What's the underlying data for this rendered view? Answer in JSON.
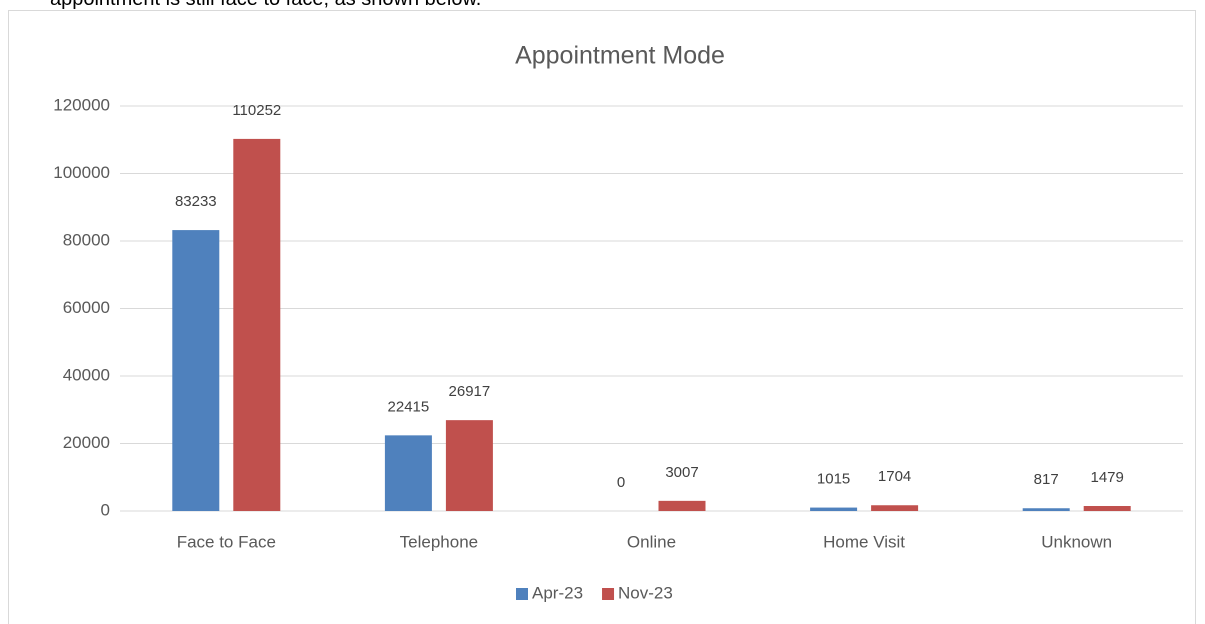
{
  "intro_text": "appointment is still face to face, as shown below.",
  "chart_data": {
    "type": "bar",
    "title": "Appointment Mode",
    "categories": [
      "Face to Face",
      "Telephone",
      "Online",
      "Home Visit",
      "Unknown"
    ],
    "series": [
      {
        "name": "Apr-23",
        "color": "#4f81bd",
        "values": [
          83233,
          22415,
          0,
          1015,
          817
        ]
      },
      {
        "name": "Nov-23",
        "color": "#c0504d",
        "values": [
          110252,
          26917,
          3007,
          1704,
          1479
        ]
      }
    ],
    "ylim": [
      0,
      120000
    ],
    "yticks": [
      0,
      20000,
      40000,
      60000,
      80000,
      100000,
      120000
    ],
    "grid": true,
    "legend": "bottom"
  }
}
